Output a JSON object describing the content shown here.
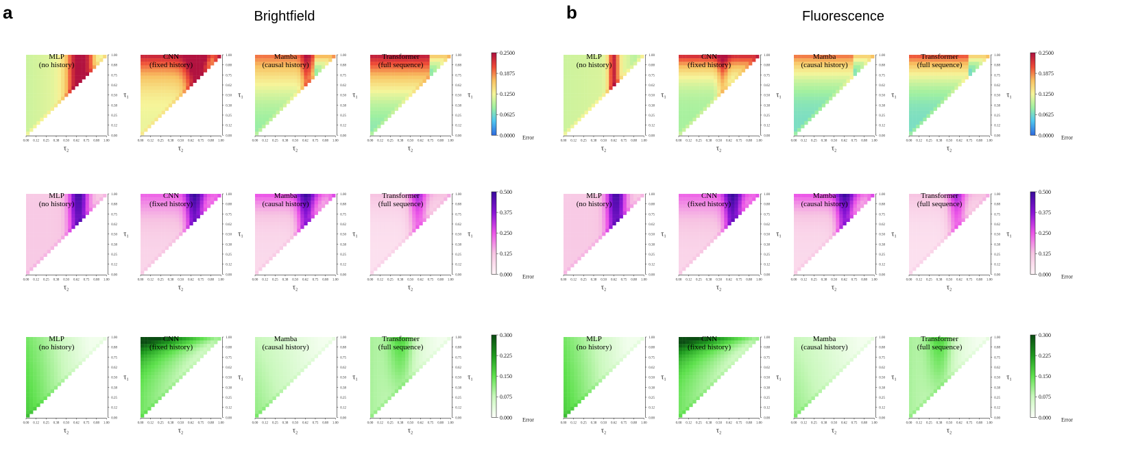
{
  "figure": {
    "panels": [
      {
        "letter": "a",
        "title": "Brightfield"
      },
      {
        "letter": "b",
        "title": "Fluorescence"
      }
    ],
    "models": [
      {
        "name": "MLP",
        "subtitle": "(no history)"
      },
      {
        "name": "CNN",
        "subtitle": "(fixed history)"
      },
      {
        "name": "Mamba",
        "subtitle": "(causal history)"
      },
      {
        "name": "Transformer",
        "subtitle": "(full sequence)"
      }
    ],
    "axes": {
      "xlabel": "τ₂",
      "ylabel": "τ₁"
    },
    "colorbar_label": "Error"
  },
  "chart_data": [
    {
      "type": "heatmap",
      "panel": "a",
      "row": 1,
      "colormap": "spectral",
      "colorbar_ticks": [
        "0.2500",
        "0.1875",
        "0.1250",
        "0.0625",
        "0.0000"
      ],
      "vmin": 0,
      "vmax": 0.25,
      "x_ticks": [
        "0.00",
        "0.12",
        "0.25",
        "0.38",
        "0.50",
        "0.62",
        "0.75",
        "0.88",
        "1.00"
      ],
      "y_ticks": [
        "1.00",
        "0.88",
        "0.75",
        "0.62",
        "0.50",
        "0.38",
        "0.25",
        "0.12",
        "0.00"
      ],
      "models": [
        "MLP",
        "CNN",
        "Mamba",
        "Transformer"
      ]
    },
    {
      "type": "heatmap",
      "panel": "a",
      "row": 2,
      "colormap": "purple",
      "colorbar_ticks": [
        "0.500",
        "0.375",
        "0.250",
        "0.125",
        "0.000"
      ],
      "vmin": 0,
      "vmax": 0.5,
      "x_ticks": [
        "0.00",
        "0.12",
        "0.25",
        "0.38",
        "0.50",
        "0.62",
        "0.75",
        "0.88",
        "1.00"
      ],
      "y_ticks": [
        "1.00",
        "0.88",
        "0.75",
        "0.62",
        "0.50",
        "0.38",
        "0.25",
        "0.12",
        "0.00"
      ],
      "models": [
        "MLP",
        "CNN",
        "Mamba",
        "Transformer"
      ]
    },
    {
      "type": "heatmap",
      "panel": "a",
      "row": 3,
      "colormap": "green",
      "colorbar_ticks": [
        "0.300",
        "0.225",
        "0.150",
        "0.075",
        "0.000"
      ],
      "vmin": 0,
      "vmax": 0.3,
      "x_ticks": [
        "0.00",
        "0.12",
        "0.25",
        "0.38",
        "0.50",
        "0.62",
        "0.75",
        "0.88",
        "1.00"
      ],
      "y_ticks": [
        "1.00",
        "0.88",
        "0.75",
        "0.62",
        "0.50",
        "0.38",
        "0.25",
        "0.12",
        "0.00"
      ],
      "models": [
        "MLP",
        "CNN",
        "Mamba",
        "Transformer"
      ]
    },
    {
      "type": "heatmap",
      "panel": "b",
      "row": 1,
      "colormap": "spectral",
      "colorbar_ticks": [
        "0.2500",
        "0.1875",
        "0.1250",
        "0.0625",
        "0.0000"
      ],
      "vmin": 0,
      "vmax": 0.25,
      "x_ticks": [
        "0.00",
        "0.12",
        "0.25",
        "0.38",
        "0.50",
        "0.62",
        "0.75",
        "0.88",
        "1.00"
      ],
      "y_ticks": [
        "1.00",
        "0.88",
        "0.75",
        "0.62",
        "0.50",
        "0.38",
        "0.25",
        "0.12",
        "0.00"
      ],
      "models": [
        "MLP",
        "CNN",
        "Mamba",
        "Transformer"
      ]
    },
    {
      "type": "heatmap",
      "panel": "b",
      "row": 2,
      "colormap": "purple",
      "colorbar_ticks": [
        "0.500",
        "0.375",
        "0.250",
        "0.125",
        "0.000"
      ],
      "vmin": 0,
      "vmax": 0.5,
      "x_ticks": [
        "0.00",
        "0.12",
        "0.25",
        "0.38",
        "0.50",
        "0.62",
        "0.75",
        "0.88",
        "1.00"
      ],
      "y_ticks": [
        "1.00",
        "0.88",
        "0.75",
        "0.62",
        "0.50",
        "0.38",
        "0.25",
        "0.12",
        "0.00"
      ],
      "models": [
        "MLP",
        "CNN",
        "Mamba",
        "Transformer"
      ]
    },
    {
      "type": "heatmap",
      "panel": "b",
      "row": 3,
      "colormap": "green",
      "colorbar_ticks": [
        "0.300",
        "0.225",
        "0.150",
        "0.075",
        "0.000"
      ],
      "vmin": 0,
      "vmax": 0.3,
      "x_ticks": [
        "0.00",
        "0.12",
        "0.25",
        "0.38",
        "0.50",
        "0.62",
        "0.75",
        "0.88",
        "1.00"
      ],
      "y_ticks": [
        "1.00",
        "0.88",
        "0.75",
        "0.62",
        "0.50",
        "0.38",
        "0.25",
        "0.12",
        "0.00"
      ],
      "models": [
        "MLP",
        "CNN",
        "Mamba",
        "Transformer"
      ]
    }
  ],
  "colormaps": {
    "spectral": [
      "#2f6fe0",
      "#4fc6ef",
      "#9ff0a0",
      "#f6f59a",
      "#f8c060",
      "#ee4a36",
      "#b1123f"
    ],
    "purple": [
      "#fff3f7",
      "#f7c4e2",
      "#ec55e8",
      "#8a14d6",
      "#3b0a9e"
    ],
    "green": [
      "#fbfff8",
      "#c9f8bc",
      "#5fe14e",
      "#1f9a1f",
      "#0a4d12"
    ]
  }
}
